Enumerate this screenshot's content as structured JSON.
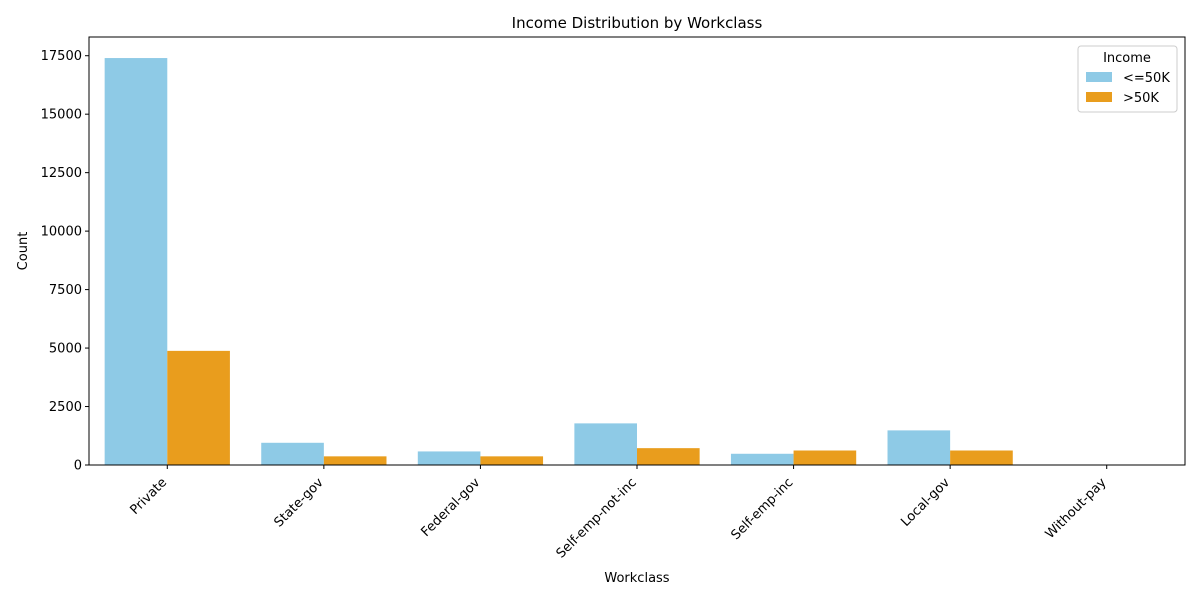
{
  "chart_data": {
    "type": "bar",
    "title": "Income Distribution by Workclass",
    "xlabel": "Workclass",
    "ylabel": "Count",
    "categories": [
      "Private",
      "State-gov",
      "Federal-gov",
      "Self-emp-not-inc",
      "Self-emp-inc",
      "Local-gov",
      "Without-pay"
    ],
    "series": [
      {
        "name": "<=50K",
        "color": "#8ecae6",
        "values": [
          17400,
          950,
          580,
          1780,
          480,
          1480,
          10
        ]
      },
      {
        "name": ">50K",
        "color": "#e99d1d",
        "values": [
          4880,
          370,
          370,
          720,
          620,
          620,
          2
        ]
      }
    ],
    "yticks": [
      0,
      2500,
      5000,
      7500,
      10000,
      12500,
      15000,
      17500
    ],
    "ylim": [
      0,
      18300
    ],
    "grid": false,
    "legend": {
      "title": "Income",
      "position": "top-right"
    }
  }
}
